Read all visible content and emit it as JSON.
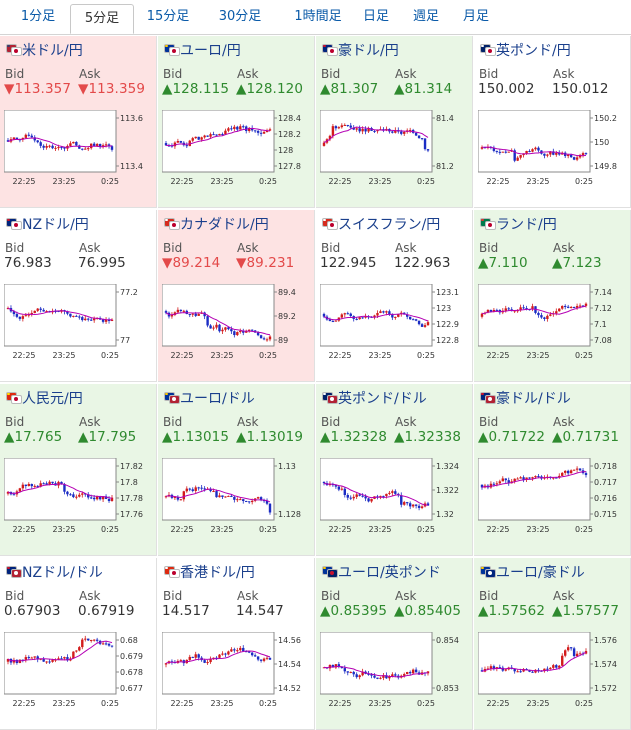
{
  "tabs": [
    {
      "label": "1分足",
      "active": false
    },
    {
      "label": "5分足",
      "active": true
    },
    {
      "label": "15分足",
      "active": false
    },
    {
      "label": "30分足",
      "active": false
    },
    {
      "label": "1時間足",
      "active": false
    },
    {
      "label": "日足",
      "active": false
    },
    {
      "label": "週足",
      "active": false
    },
    {
      "label": "月足",
      "active": false
    }
  ],
  "colors": {
    "up": "#2f8a2f",
    "down": "#e34a4a",
    "candle_up": "#d21b1b",
    "candle_down": "#1b2cc4",
    "ma": "#b400b4",
    "link": "#1a3f8c"
  },
  "bid_label": "Bid",
  "ask_label": "Ask",
  "pairs": [
    {
      "name": "米ドル/円",
      "dir": "down",
      "arrow": "▼",
      "bid": "113.357",
      "ask": "113.359",
      "flag": "us-jp-flag",
      "yticks": [
        "113.6",
        "113.4"
      ],
      "xticks": [
        "22:25",
        "23:25",
        "0:25"
      ],
      "seed": 1
    },
    {
      "name": "ユーロ/円",
      "dir": "up",
      "arrow": "▲",
      "bid": "128.115",
      "ask": "128.120",
      "flag": "eu-jp-flag",
      "yticks": [
        "128.4",
        "128.2",
        "128",
        "127.8"
      ],
      "xticks": [
        "22:25",
        "23:25",
        "0:25"
      ],
      "seed": 2
    },
    {
      "name": "豪ドル/円",
      "dir": "up",
      "arrow": "▲",
      "bid": "81.307",
      "ask": "81.314",
      "flag": "au-jp-flag",
      "yticks": [
        "81.4",
        "81.2"
      ],
      "xticks": [
        "22:25",
        "23:25",
        "0:25"
      ],
      "seed": 3
    },
    {
      "name": "英ポンド/円",
      "dir": "flat",
      "arrow": "",
      "bid": "150.002",
      "ask": "150.012",
      "flag": "gb-jp-flag",
      "yticks": [
        "150.2",
        "150",
        "149.8"
      ],
      "xticks": [
        "22:25",
        "23:25",
        "0:25"
      ],
      "seed": 4
    },
    {
      "name": "NZドル/円",
      "dir": "flat",
      "arrow": "",
      "bid": "76.983",
      "ask": "76.995",
      "flag": "nz-jp-flag",
      "yticks": [
        "77.2",
        "77"
      ],
      "xticks": [
        "22:25",
        "23:25",
        "0:25"
      ],
      "seed": 5
    },
    {
      "name": "カナダドル/円",
      "dir": "down",
      "arrow": "▼",
      "bid": "89.214",
      "ask": "89.231",
      "flag": "ca-jp-flag",
      "yticks": [
        "89.4",
        "89.2",
        "89"
      ],
      "xticks": [
        "22:25",
        "23:25",
        "0:25"
      ],
      "seed": 6
    },
    {
      "name": "スイスフラン/円",
      "dir": "flat",
      "arrow": "",
      "bid": "122.945",
      "ask": "122.963",
      "flag": "ch-jp-flag",
      "yticks": [
        "123.1",
        "123",
        "122.9",
        "122.8"
      ],
      "xticks": [
        "22:25",
        "23:25",
        "0:25"
      ],
      "seed": 7
    },
    {
      "name": "ランド/円",
      "dir": "up",
      "arrow": "▲",
      "bid": "7.110",
      "ask": "7.123",
      "flag": "za-jp-flag",
      "yticks": [
        "7.14",
        "7.12",
        "7.1",
        "7.08"
      ],
      "xticks": [
        "22:25",
        "23:25",
        "0:25"
      ],
      "seed": 8
    },
    {
      "name": "人民元/円",
      "dir": "up",
      "arrow": "▲",
      "bid": "17.765",
      "ask": "17.795",
      "flag": "cn-jp-flag",
      "yticks": [
        "17.82",
        "17.8",
        "17.78",
        "17.76"
      ],
      "xticks": [
        "22:25",
        "23:25",
        "0:25"
      ],
      "seed": 9
    },
    {
      "name": "ユーロ/ドル",
      "dir": "up",
      "arrow": "▲",
      "bid": "1.13015",
      "ask": "1.13019",
      "flag": "eu-us-flag",
      "yticks": [
        "1.13",
        "1.128"
      ],
      "xticks": [
        "22:25",
        "23:25",
        "0:25"
      ],
      "seed": 10
    },
    {
      "name": "英ポンド/ドル",
      "dir": "up",
      "arrow": "▲",
      "bid": "1.32328",
      "ask": "1.32338",
      "flag": "gb-us-flag",
      "yticks": [
        "1.324",
        "1.322",
        "1.32"
      ],
      "xticks": [
        "22:25",
        "23:25",
        "0:25"
      ],
      "seed": 11
    },
    {
      "name": "豪ドル/ドル",
      "dir": "up",
      "arrow": "▲",
      "bid": "0.71722",
      "ask": "0.71731",
      "flag": "au-us-flag",
      "yticks": [
        "0.718",
        "0.717",
        "0.716",
        "0.715"
      ],
      "xticks": [
        "22:25",
        "23:25",
        "0:25"
      ],
      "seed": 12
    },
    {
      "name": "NZドル/ドル",
      "dir": "flat",
      "arrow": "",
      "bid": "0.67903",
      "ask": "0.67919",
      "flag": "nz-us-flag",
      "yticks": [
        "0.68",
        "0.679",
        "0.678",
        "0.677"
      ],
      "xticks": [
        "22:25",
        "23:25",
        "0:25"
      ],
      "seed": 13
    },
    {
      "name": "香港ドル/円",
      "dir": "flat",
      "arrow": "",
      "bid": "14.517",
      "ask": "14.547",
      "flag": "hk-jp-flag",
      "yticks": [
        "14.56",
        "14.54",
        "14.52"
      ],
      "xticks": [
        "22:25",
        "23:25",
        "0:25"
      ],
      "seed": 14
    },
    {
      "name": "ユーロ/英ポンド",
      "dir": "up",
      "arrow": "▲",
      "bid": "0.85395",
      "ask": "0.85405",
      "flag": "eu-gb-flag",
      "yticks": [
        "0.854",
        "0.853"
      ],
      "xticks": [
        "22:25",
        "23:25",
        "0:25"
      ],
      "seed": 15
    },
    {
      "name": "ユーロ/豪ドル",
      "dir": "up",
      "arrow": "▲",
      "bid": "1.57562",
      "ask": "1.57577",
      "flag": "eu-au-flag",
      "yticks": [
        "1.576",
        "1.574",
        "1.572"
      ],
      "xticks": [
        "22:25",
        "23:25",
        "0:25"
      ],
      "seed": 16
    }
  ]
}
